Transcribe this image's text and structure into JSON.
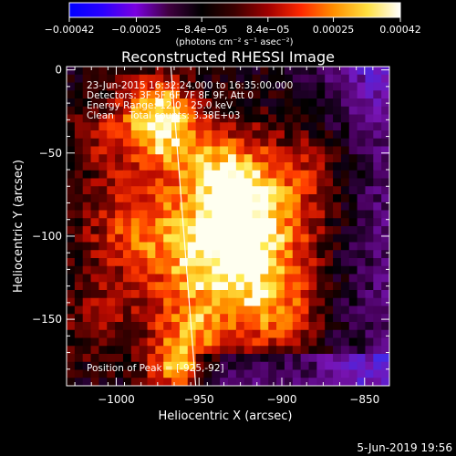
{
  "chart_data": {
    "type": "heatmap",
    "title": "Reconstructed RHESSI Image",
    "xlabel": "Heliocentric X (arcsec)",
    "ylabel": "Heliocentric Y (arcsec)",
    "xlim": [
      -1030,
      -835
    ],
    "ylim": [
      -190,
      2
    ],
    "x_ticks": [
      {
        "value": -1000,
        "label": "−1000"
      },
      {
        "value": -950,
        "label": "−950"
      },
      {
        "value": -900,
        "label": "−900"
      },
      {
        "value": -850,
        "label": "−850"
      }
    ],
    "y_ticks": [
      {
        "value": 0,
        "label": "0"
      },
      {
        "value": -50,
        "label": "−50"
      },
      {
        "value": -100,
        "label": "−100"
      },
      {
        "value": -150,
        "label": "−150"
      }
    ],
    "colorbar": {
      "range": [
        -0.00042,
        0.00042
      ],
      "tick_values": [
        -0.00042,
        -0.00025,
        -8.4e-05,
        8.4e-05,
        0.00025,
        0.00042
      ],
      "tick_labels": [
        "−0.00042",
        "−0.00025",
        "−8.4e−05",
        "8.4e−05",
        "0.00025",
        "0.00042"
      ],
      "unit_label": "(photons cm⁻² s⁻¹ asec⁻²)",
      "colors": [
        "#0000ff",
        "#2a00ff",
        "#7a00e0",
        "#400040",
        "#000000",
        "#3c0000",
        "#a00000",
        "#ff2800",
        "#ff9000",
        "#ffe040",
        "#ffffff"
      ]
    },
    "annotations": [
      "23-Jun-2015 16:32:24.000 to 16:35:00.000",
      "Detectors: 3F 5F 6F 7F 8F 9F, Att 0",
      "Energy Range: 12.0 - 25.0 keV",
      "Clean     Total counts: 3.38E+03"
    ],
    "peak": {
      "label": "Position of Peak = [-925,-92]",
      "x": -925,
      "y": -92
    },
    "limb_line": {
      "x": [
        -967,
        -952
      ],
      "y": [
        2,
        -190
      ],
      "color": "#ffffff"
    }
  },
  "footer": {
    "timestamp": "5-Jun-2019 19:56"
  }
}
